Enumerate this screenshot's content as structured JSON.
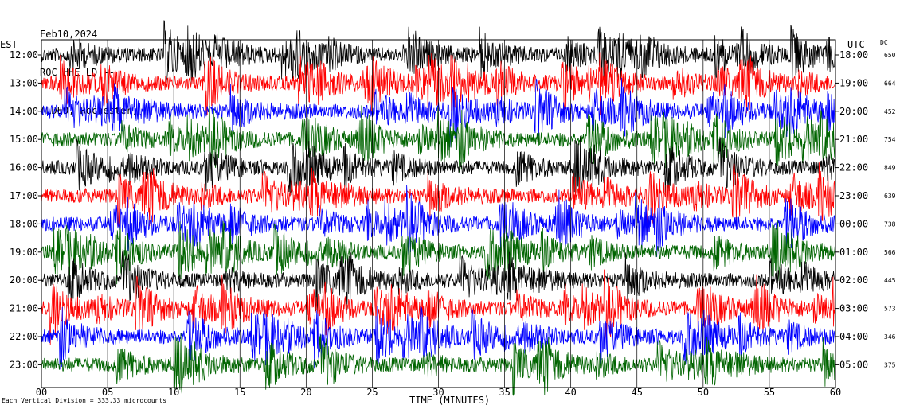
{
  "header": {
    "date": "Feb10,2024",
    "station": "ROC HHE LD --",
    "network": "(LDEO, Rochester)"
  },
  "footnote": "Each Vertical Division = 333.33 microcounts",
  "chart_data": {
    "type": "line",
    "title": "",
    "xlabel": "TIME (MINUTES)",
    "ylabel_left": "EST",
    "ylabel_right": "UTC",
    "dc_label": "DC",
    "xlim": [
      0,
      60
    ],
    "x_ticks": [
      "00",
      "05",
      "10",
      "15",
      "20",
      "25",
      "30",
      "35",
      "40",
      "45",
      "50",
      "55",
      "60"
    ],
    "trace_colors": [
      "#000000",
      "#ff0000",
      "#0000ff",
      "#006400"
    ],
    "rows": [
      {
        "est": "12:00",
        "utc": "18:00",
        "dc": "650"
      },
      {
        "est": "13:00",
        "utc": "19:00",
        "dc": "664"
      },
      {
        "est": "14:00",
        "utc": "20:00",
        "dc": "452"
      },
      {
        "est": "15:00",
        "utc": "21:00",
        "dc": "754"
      },
      {
        "est": "16:00",
        "utc": "22:00",
        "dc": "849"
      },
      {
        "est": "17:00",
        "utc": "23:00",
        "dc": "639"
      },
      {
        "est": "18:00",
        "utc": "00:00",
        "dc": "738"
      },
      {
        "est": "19:00",
        "utc": "01:00",
        "dc": "566"
      },
      {
        "est": "20:00",
        "utc": "02:00",
        "dc": "445"
      },
      {
        "est": "21:00",
        "utc": "03:00",
        "dc": "573"
      },
      {
        "est": "22:00",
        "utc": "04:00",
        "dc": "346"
      },
      {
        "est": "23:00",
        "utc": "05:00",
        "dc": "375"
      }
    ]
  }
}
